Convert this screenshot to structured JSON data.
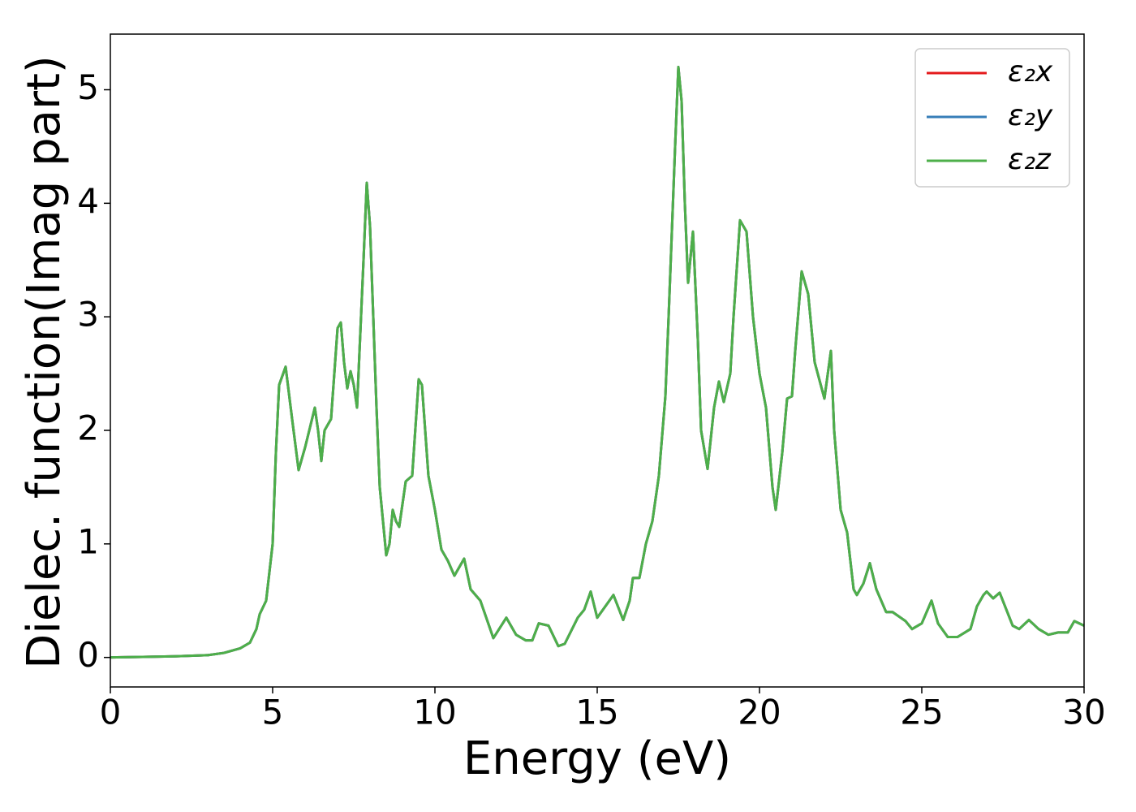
{
  "chart_data": {
    "type": "line",
    "xlabel": "Energy (eV)",
    "ylabel": "Dielec. function(Imag part)",
    "x": [
      0,
      1,
      2,
      3,
      3.5,
      4,
      4.3,
      4.5,
      4.6,
      4.8,
      5.0,
      5.1,
      5.2,
      5.4,
      5.6,
      5.8,
      6.0,
      6.3,
      6.4,
      6.5,
      6.6,
      6.8,
      7.0,
      7.1,
      7.2,
      7.3,
      7.4,
      7.5,
      7.6,
      7.8,
      7.9,
      8.0,
      8.2,
      8.3,
      8.5,
      8.6,
      8.7,
      8.8,
      8.9,
      9.1,
      9.3,
      9.5,
      9.6,
      9.8,
      10.0,
      10.2,
      10.4,
      10.6,
      10.9,
      11.1,
      11.4,
      11.8,
      12.2,
      12.5,
      12.8,
      13.0,
      13.2,
      13.5,
      13.8,
      14.0,
      14.4,
      14.6,
      14.8,
      15.0,
      15.5,
      15.8,
      16.0,
      16.1,
      16.3,
      16.5,
      16.7,
      16.9,
      17.1,
      17.2,
      17.4,
      17.5,
      17.6,
      17.7,
      17.8,
      17.95,
      18.1,
      18.2,
      18.4,
      18.6,
      18.75,
      18.9,
      19.1,
      19.2,
      19.4,
      19.6,
      19.8,
      20.0,
      20.2,
      20.4,
      20.5,
      20.7,
      20.85,
      21.0,
      21.1,
      21.3,
      21.5,
      21.7,
      22.0,
      22.2,
      22.3,
      22.5,
      22.7,
      22.9,
      23.0,
      23.2,
      23.4,
      23.6,
      23.9,
      24.1,
      24.5,
      24.7,
      25.0,
      25.3,
      25.5,
      25.8,
      26.1,
      26.5,
      26.7,
      26.9,
      27.0,
      27.2,
      27.4,
      27.8,
      28.0,
      28.3,
      28.6,
      28.9,
      29.2,
      29.5,
      29.7,
      30.0
    ],
    "series": [
      {
        "name": "ε₂x",
        "color": "#e41a1c",
        "values": [
          0,
          0.005,
          0.01,
          0.02,
          0.04,
          0.08,
          0.13,
          0.25,
          0.38,
          0.5,
          1.0,
          1.8,
          2.4,
          2.56,
          2.1,
          1.65,
          1.85,
          2.2,
          2.0,
          1.73,
          2.0,
          2.1,
          2.9,
          2.95,
          2.6,
          2.37,
          2.52,
          2.4,
          2.2,
          3.5,
          4.18,
          3.8,
          2.2,
          1.5,
          0.9,
          1.0,
          1.3,
          1.2,
          1.15,
          1.55,
          1.6,
          2.45,
          2.4,
          1.6,
          1.3,
          0.95,
          0.85,
          0.72,
          0.87,
          0.6,
          0.5,
          0.17,
          0.35,
          0.2,
          0.15,
          0.15,
          0.3,
          0.28,
          0.1,
          0.12,
          0.35,
          0.42,
          0.58,
          0.35,
          0.55,
          0.33,
          0.5,
          0.7,
          0.7,
          1.0,
          1.2,
          1.6,
          2.3,
          3.0,
          4.5,
          5.2,
          4.9,
          4.0,
          3.3,
          3.75,
          2.8,
          2.0,
          1.66,
          2.2,
          2.43,
          2.25,
          2.5,
          3.0,
          3.85,
          3.75,
          3.0,
          2.5,
          2.2,
          1.5,
          1.3,
          1.8,
          2.28,
          2.3,
          2.7,
          3.4,
          3.2,
          2.6,
          2.28,
          2.7,
          2.0,
          1.3,
          1.1,
          0.6,
          0.55,
          0.65,
          0.83,
          0.6,
          0.4,
          0.4,
          0.32,
          0.25,
          0.3,
          0.5,
          0.3,
          0.18,
          0.18,
          0.25,
          0.45,
          0.55,
          0.58,
          0.52,
          0.57,
          0.28,
          0.25,
          0.33,
          0.25,
          0.2,
          0.22,
          0.22,
          0.32,
          0.28
        ]
      },
      {
        "name": "ε₂y",
        "color": "#377eb8",
        "values": [
          0,
          0.005,
          0.01,
          0.02,
          0.04,
          0.08,
          0.13,
          0.25,
          0.38,
          0.5,
          1.0,
          1.8,
          2.4,
          2.56,
          2.1,
          1.65,
          1.85,
          2.2,
          2.0,
          1.73,
          2.0,
          2.1,
          2.9,
          2.95,
          2.6,
          2.37,
          2.52,
          2.4,
          2.2,
          3.5,
          4.18,
          3.8,
          2.2,
          1.5,
          0.9,
          1.0,
          1.3,
          1.2,
          1.15,
          1.55,
          1.6,
          2.45,
          2.4,
          1.6,
          1.3,
          0.95,
          0.85,
          0.72,
          0.87,
          0.6,
          0.5,
          0.17,
          0.35,
          0.2,
          0.15,
          0.15,
          0.3,
          0.28,
          0.1,
          0.12,
          0.35,
          0.42,
          0.58,
          0.35,
          0.55,
          0.33,
          0.5,
          0.7,
          0.7,
          1.0,
          1.2,
          1.6,
          2.3,
          3.0,
          4.5,
          5.2,
          4.9,
          4.0,
          3.3,
          3.75,
          2.8,
          2.0,
          1.66,
          2.2,
          2.43,
          2.25,
          2.5,
          3.0,
          3.85,
          3.75,
          3.0,
          2.5,
          2.2,
          1.5,
          1.3,
          1.8,
          2.28,
          2.3,
          2.7,
          3.4,
          3.2,
          2.6,
          2.28,
          2.7,
          2.0,
          1.3,
          1.1,
          0.6,
          0.55,
          0.65,
          0.83,
          0.6,
          0.4,
          0.4,
          0.32,
          0.25,
          0.3,
          0.5,
          0.3,
          0.18,
          0.18,
          0.25,
          0.45,
          0.55,
          0.58,
          0.52,
          0.57,
          0.28,
          0.25,
          0.33,
          0.25,
          0.2,
          0.22,
          0.22,
          0.32,
          0.28
        ]
      },
      {
        "name": "ε₂z",
        "color": "#4daf4a",
        "values": [
          0,
          0.005,
          0.01,
          0.02,
          0.04,
          0.08,
          0.13,
          0.25,
          0.38,
          0.5,
          1.0,
          1.8,
          2.4,
          2.56,
          2.1,
          1.65,
          1.85,
          2.2,
          2.0,
          1.73,
          2.0,
          2.1,
          2.9,
          2.95,
          2.6,
          2.37,
          2.52,
          2.4,
          2.2,
          3.5,
          4.18,
          3.8,
          2.2,
          1.5,
          0.9,
          1.0,
          1.3,
          1.2,
          1.15,
          1.55,
          1.6,
          2.45,
          2.4,
          1.6,
          1.3,
          0.95,
          0.85,
          0.72,
          0.87,
          0.6,
          0.5,
          0.17,
          0.35,
          0.2,
          0.15,
          0.15,
          0.3,
          0.28,
          0.1,
          0.12,
          0.35,
          0.42,
          0.58,
          0.35,
          0.55,
          0.33,
          0.5,
          0.7,
          0.7,
          1.0,
          1.2,
          1.6,
          2.3,
          3.0,
          4.5,
          5.2,
          4.9,
          4.0,
          3.3,
          3.75,
          2.8,
          2.0,
          1.66,
          2.2,
          2.43,
          2.25,
          2.5,
          3.0,
          3.85,
          3.75,
          3.0,
          2.5,
          2.2,
          1.5,
          1.3,
          1.8,
          2.28,
          2.3,
          2.7,
          3.4,
          3.2,
          2.6,
          2.28,
          2.7,
          2.0,
          1.3,
          1.1,
          0.6,
          0.55,
          0.65,
          0.83,
          0.6,
          0.4,
          0.4,
          0.32,
          0.25,
          0.3,
          0.5,
          0.3,
          0.18,
          0.18,
          0.25,
          0.45,
          0.55,
          0.58,
          0.52,
          0.57,
          0.28,
          0.25,
          0.33,
          0.25,
          0.2,
          0.22,
          0.22,
          0.32,
          0.28
        ]
      }
    ],
    "xlim": [
      0,
      30
    ],
    "xticks": [
      0,
      5,
      10,
      15,
      20,
      25,
      30
    ],
    "ylim": [
      -0.26,
      5.49
    ],
    "yticks": [
      0,
      1,
      2,
      3,
      4,
      5
    ],
    "legend": "upper right"
  }
}
